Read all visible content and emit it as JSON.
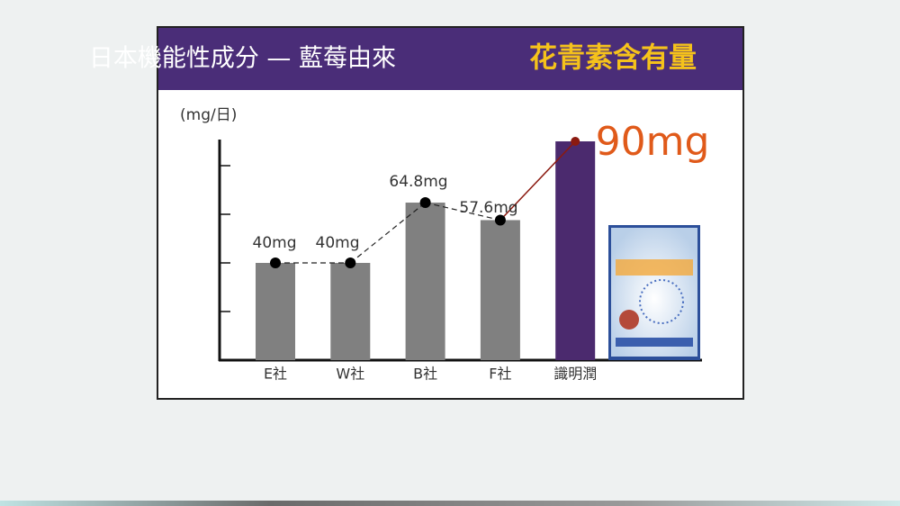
{
  "chart_data": {
    "type": "bar",
    "title": "日本機能性成分 — 藍莓由來",
    "title_highlight": "花青素含有量",
    "y_label": "(mg/日)",
    "categories": [
      "E社",
      "W社",
      "B社",
      "F社",
      "識明潤"
    ],
    "values": [
      40,
      40,
      64.8,
      57.6,
      90
    ],
    "value_labels": [
      "40mg",
      "40mg",
      "64.8mg",
      "57.6mg",
      "90mg"
    ],
    "colors": [
      "#808080",
      "#808080",
      "#808080",
      "#808080",
      "#4b2a6e"
    ],
    "ylim": [
      0,
      90
    ],
    "yticks": [
      20,
      40,
      60,
      80
    ]
  }
}
